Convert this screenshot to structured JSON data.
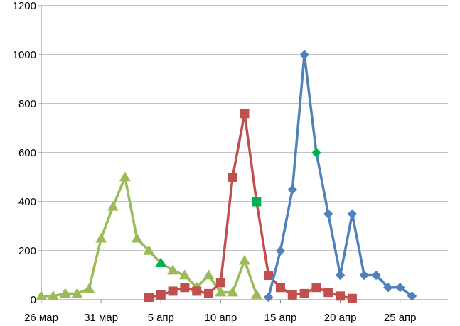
{
  "chart_data": {
    "type": "line",
    "title": "",
    "xlabel": "",
    "ylabel": "",
    "xlim": [
      "2024-03-26",
      "2024-04-29"
    ],
    "ylim": [
      0,
      1200
    ],
    "y_ticks": [
      0,
      200,
      400,
      600,
      800,
      1000,
      1200
    ],
    "x_ticks": [
      {
        "date": "2024-03-26",
        "label": "26 мар"
      },
      {
        "date": "2024-03-31",
        "label": "31 мар"
      },
      {
        "date": "2024-04-05",
        "label": "5 апр"
      },
      {
        "date": "2024-04-10",
        "label": "10 апр"
      },
      {
        "date": "2024-04-15",
        "label": "15 апр"
      },
      {
        "date": "2024-04-20",
        "label": "20 апр"
      },
      {
        "date": "2024-04-25",
        "label": "25 апр"
      }
    ],
    "grid": {
      "horizontal": true,
      "vertical": false
    },
    "legend": "none",
    "series": [
      {
        "marker": "triangle",
        "color": "#9BBB59",
        "highlight_color": "#00B050",
        "points": [
          {
            "x": "2024-03-26",
            "y": 15
          },
          {
            "x": "2024-03-27",
            "y": 15
          },
          {
            "x": "2024-03-28",
            "y": 25
          },
          {
            "x": "2024-03-29",
            "y": 25
          },
          {
            "x": "2024-03-30",
            "y": 45
          },
          {
            "x": "2024-03-31",
            "y": 250
          },
          {
            "x": "2024-04-01",
            "y": 380
          },
          {
            "x": "2024-04-02",
            "y": 500
          },
          {
            "x": "2024-04-03",
            "y": 250
          },
          {
            "x": "2024-04-04",
            "y": 200
          },
          {
            "x": "2024-04-05",
            "y": 150,
            "highlight": true
          },
          {
            "x": "2024-04-06",
            "y": 120
          },
          {
            "x": "2024-04-07",
            "y": 100
          },
          {
            "x": "2024-04-08",
            "y": 50
          },
          {
            "x": "2024-04-09",
            "y": 100
          },
          {
            "x": "2024-04-10",
            "y": 30
          },
          {
            "x": "2024-04-11",
            "y": 30
          },
          {
            "x": "2024-04-12",
            "y": 160
          },
          {
            "x": "2024-04-13",
            "y": 20
          }
        ]
      },
      {
        "marker": "square",
        "color": "#C0504D",
        "highlight_color": "#00B050",
        "points": [
          {
            "x": "2024-04-04",
            "y": 10
          },
          {
            "x": "2024-04-05",
            "y": 20
          },
          {
            "x": "2024-04-06",
            "y": 35
          },
          {
            "x": "2024-04-07",
            "y": 50
          },
          {
            "x": "2024-04-08",
            "y": 35
          },
          {
            "x": "2024-04-09",
            "y": 25
          },
          {
            "x": "2024-04-10",
            "y": 70
          },
          {
            "x": "2024-04-11",
            "y": 500
          },
          {
            "x": "2024-04-12",
            "y": 760
          },
          {
            "x": "2024-04-13",
            "y": 400,
            "highlight": true
          },
          {
            "x": "2024-04-14",
            "y": 100
          },
          {
            "x": "2024-04-15",
            "y": 50
          },
          {
            "x": "2024-04-16",
            "y": 20
          },
          {
            "x": "2024-04-17",
            "y": 25
          },
          {
            "x": "2024-04-18",
            "y": 50
          },
          {
            "x": "2024-04-19",
            "y": 30
          },
          {
            "x": "2024-04-20",
            "y": 15
          },
          {
            "x": "2024-04-21",
            "y": 5
          }
        ]
      },
      {
        "marker": "diamond",
        "color": "#4F81BD",
        "highlight_color": "#00B050",
        "points": [
          {
            "x": "2024-04-14",
            "y": 10
          },
          {
            "x": "2024-04-15",
            "y": 200
          },
          {
            "x": "2024-04-16",
            "y": 450
          },
          {
            "x": "2024-04-17",
            "y": 1000
          },
          {
            "x": "2024-04-18",
            "y": 600,
            "highlight": true
          },
          {
            "x": "2024-04-19",
            "y": 350
          },
          {
            "x": "2024-04-20",
            "y": 100
          },
          {
            "x": "2024-04-21",
            "y": 350
          },
          {
            "x": "2024-04-22",
            "y": 100
          },
          {
            "x": "2024-04-23",
            "y": 100
          },
          {
            "x": "2024-04-24",
            "y": 50
          },
          {
            "x": "2024-04-25",
            "y": 50
          },
          {
            "x": "2024-04-26",
            "y": 15
          }
        ]
      }
    ]
  }
}
